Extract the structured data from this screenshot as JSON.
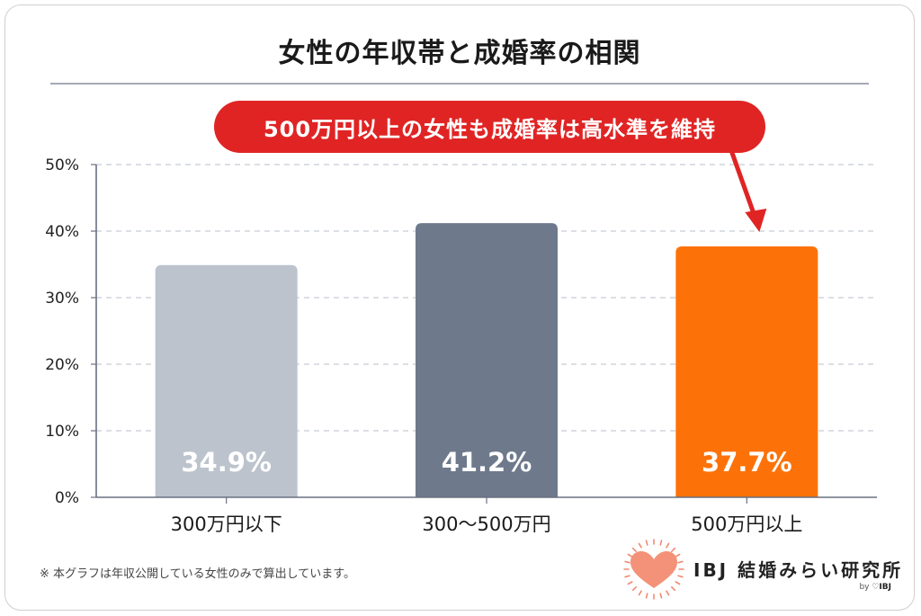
{
  "title": "女性の年収帯と成婚率の相関",
  "callout": "500万円以上の女性も成婚率は高水準を維持",
  "footnote": "※ 本グラフは年収公開している女性のみで算出しています。",
  "logo": {
    "name": "IBJ 結婚みらい研究所",
    "by_prefix": "by ",
    "by_brand": "♡IBJ",
    "icon": "heart-sunburst-icon"
  },
  "colors": {
    "accent_red": "#e02424",
    "highlight_orange": "#fd7208",
    "bar_light": "#bcc3cd",
    "bar_dark": "#6e7a8c",
    "grid": "#c8ccd3"
  },
  "chart_data": {
    "type": "bar",
    "categories": [
      "300万円以下",
      "300〜500万円",
      "500万円以上"
    ],
    "values": [
      34.9,
      41.2,
      37.7
    ],
    "value_labels": [
      "34.9%",
      "41.2%",
      "37.7%"
    ],
    "bar_colors": [
      "#bcc3cd",
      "#6e7a8c",
      "#fd7208"
    ],
    "y_ticks": [
      "0%",
      "10%",
      "20%",
      "30%",
      "40%",
      "50%"
    ],
    "ylim": [
      0,
      50
    ],
    "grid": true,
    "title": "女性の年収帯と成婚率の相関",
    "xlabel": "",
    "ylabel": ""
  }
}
